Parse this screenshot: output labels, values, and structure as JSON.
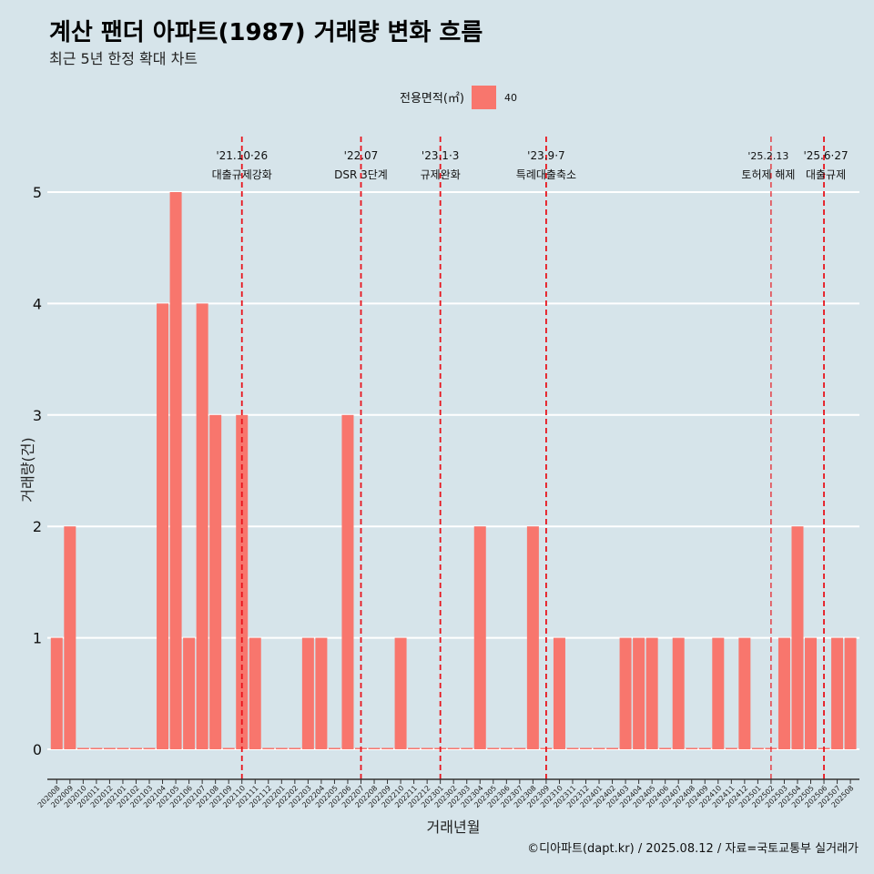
{
  "chart_data": {
    "type": "bar",
    "title": "계산 팬더 아파트(1987) 거래량 변화 흐름",
    "subtitle": "최근 5년 한정 확대 차트",
    "xlabel": "거래년월",
    "ylabel": "거래량(건)",
    "ylim": [
      0,
      5
    ],
    "yticks": [
      0,
      1,
      2,
      3,
      4,
      5
    ],
    "grid": "horizontal",
    "legend": {
      "title": "전용면적(㎡)",
      "placement": "top-center",
      "entries": [
        {
          "label": "40",
          "color": "#f8766d"
        }
      ]
    },
    "categories": [
      "202008",
      "202009",
      "202010",
      "202011",
      "202012",
      "202101",
      "202102",
      "202103",
      "202104",
      "202105",
      "202106",
      "202107",
      "202108",
      "202109",
      "202110",
      "202111",
      "202112",
      "202201",
      "202202",
      "202203",
      "202204",
      "202205",
      "202206",
      "202207",
      "202208",
      "202209",
      "202210",
      "202211",
      "202212",
      "202301",
      "202302",
      "202303",
      "202304",
      "202305",
      "202306",
      "202307",
      "202308",
      "202309",
      "202310",
      "202311",
      "202312",
      "202401",
      "202402",
      "202403",
      "202404",
      "202405",
      "202406",
      "202407",
      "202408",
      "202409",
      "202410",
      "202411",
      "202412",
      "202501",
      "202502",
      "202503",
      "202504",
      "202505",
      "202506",
      "202507",
      "202508"
    ],
    "series": [
      {
        "name": "40",
        "color": "#f8766d",
        "values": [
          1,
          2,
          0,
          0,
          0,
          0,
          0,
          0,
          4,
          5,
          1,
          4,
          3,
          0,
          3,
          1,
          0,
          0,
          0,
          1,
          1,
          0,
          3,
          0,
          0,
          0,
          1,
          0,
          0,
          0,
          0,
          0,
          2,
          0,
          0,
          0,
          2,
          0,
          1,
          0,
          0,
          0,
          0,
          1,
          1,
          1,
          0,
          1,
          0,
          0,
          1,
          0,
          1,
          0,
          0,
          1,
          2,
          1,
          0,
          1,
          1
        ]
      }
    ],
    "annotations": [
      {
        "x": "202110",
        "date": "'21.10·26",
        "label": "대출규제강화"
      },
      {
        "x": "202207",
        "date": "'22.07",
        "label": "DSR 3단계"
      },
      {
        "x": "202301",
        "date": "'23.1·3",
        "label": "규제완화"
      },
      {
        "x": "202309",
        "date": "'23.9·7",
        "label": "특례대출축소"
      },
      {
        "x": "202502",
        "date": "'25.2.13",
        "label": "토허제 해제"
      },
      {
        "x": "202506",
        "date": "'25.6·27",
        "label": "대출규제"
      }
    ],
    "caption": "©디아파트(dapt.kr) / 2025.08.12 / 자료=국토교통부 실거래가"
  }
}
